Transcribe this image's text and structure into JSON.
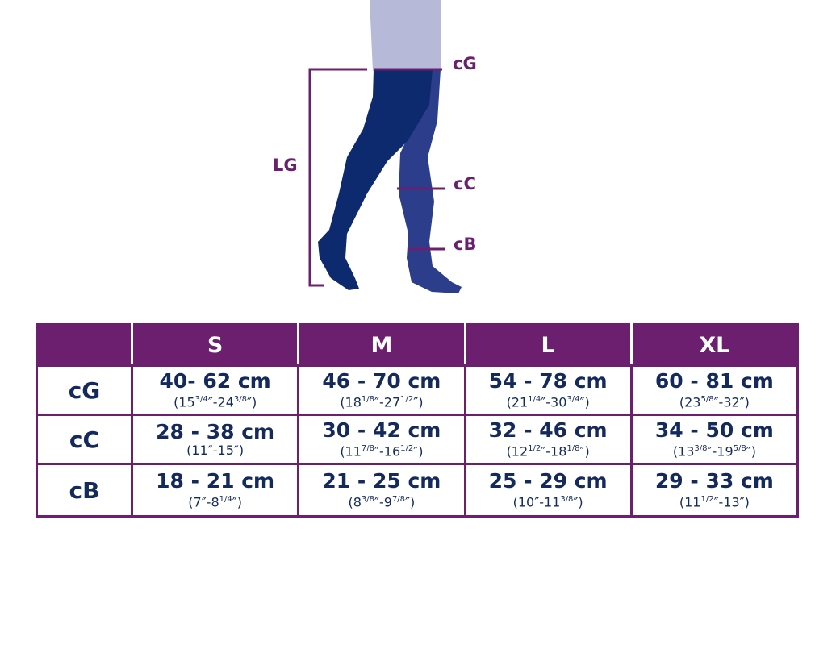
{
  "colors": {
    "accent": "#6b1f6e",
    "text": "#14295c",
    "leg_front": "#0e2a6e",
    "leg_back": "#2c3d8c",
    "skin": "#b7b9d8"
  },
  "figure": {
    "labels": {
      "lg": "LG",
      "cg": "cG",
      "cc": "cC",
      "cb": "cB"
    }
  },
  "table": {
    "corner": "",
    "sizes": [
      "S",
      "M",
      "L",
      "XL"
    ],
    "rows": [
      {
        "label": "cG",
        "cells": [
          {
            "cm": "40- 62 cm",
            "in": [
              "(15",
              "3/4",
              "″-24",
              "3/8",
              "″)"
            ]
          },
          {
            "cm": "46 - 70 cm",
            "in": [
              "(18",
              "1/8",
              "″-27",
              "1/2",
              "″)"
            ]
          },
          {
            "cm": "54 - 78 cm",
            "in": [
              "(21",
              "1/4",
              "″-30",
              "3/4",
              "″)"
            ]
          },
          {
            "cm": "60 - 81 cm",
            "in": [
              "(23",
              "5/8",
              "″-32″)"
            ]
          }
        ]
      },
      {
        "label": "cC",
        "cells": [
          {
            "cm": "28 - 38 cm",
            "in": [
              "(11″-15″)"
            ]
          },
          {
            "cm": "30 - 42 cm",
            "in": [
              "(11",
              "7/8",
              "″-16",
              "1/2",
              "″)"
            ]
          },
          {
            "cm": "32 - 46 cm",
            "in": [
              "(12",
              "1/2",
              "″-18",
              "1/8",
              "″)"
            ]
          },
          {
            "cm": "34 - 50 cm",
            "in": [
              "(13",
              "3/8",
              "″-19",
              "5/8",
              "″)"
            ]
          }
        ]
      },
      {
        "label": "cB",
        "cells": [
          {
            "cm": "18 - 21 cm",
            "in": [
              "(7″-8",
              "1/4",
              "″)"
            ]
          },
          {
            "cm": "21 - 25 cm",
            "in": [
              "(8",
              "3/8",
              "″-9",
              "7/8",
              "″)"
            ]
          },
          {
            "cm": "25 - 29 cm",
            "in": [
              "(10″-11",
              "3/8",
              "″)"
            ]
          },
          {
            "cm": "29 - 33 cm",
            "in": [
              "(11",
              "1/2",
              "″-13″)"
            ]
          }
        ]
      }
    ]
  }
}
